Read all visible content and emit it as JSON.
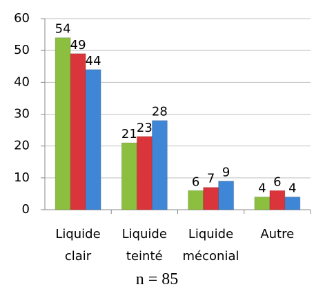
{
  "chart_data": {
    "type": "bar",
    "categories": [
      "Liquide clair",
      "Liquide teinté",
      "Liquide méconial",
      "Autre"
    ],
    "series": [
      {
        "color": "#8cbf3f",
        "values": [
          54,
          21,
          6,
          4
        ]
      },
      {
        "color": "#d9353a",
        "values": [
          49,
          23,
          7,
          6
        ]
      },
      {
        "color": "#3f86d6",
        "values": [
          44,
          28,
          9,
          4
        ]
      }
    ],
    "ylim": [
      0,
      60
    ],
    "yticks": [
      0,
      10,
      20,
      30,
      40,
      50,
      60
    ],
    "grid": true,
    "caption": "n = 85"
  }
}
